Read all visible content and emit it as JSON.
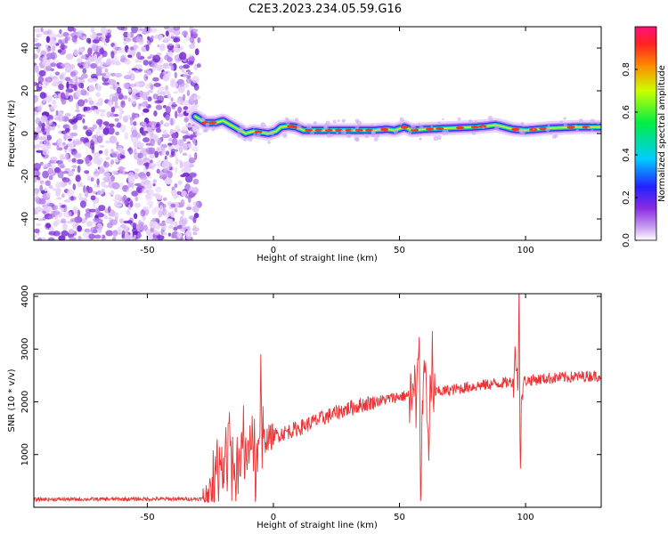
{
  "title": "C2E3.2023.234.05.59.G16",
  "chart_data": [
    {
      "type": "heatmap",
      "xlabel": "Height of straight line (km)",
      "ylabel": "Frequency (Hz)",
      "xlim": [
        -95,
        130
      ],
      "ylim": [
        -50,
        50
      ],
      "xticks": [
        -50,
        0,
        50,
        100
      ],
      "yticks": [
        -40,
        -20,
        0,
        20,
        40
      ],
      "noise_region_x": [
        -95,
        -31
      ],
      "signal_ridge": {
        "x": [
          -31,
          -27,
          -23,
          -20,
          -17,
          -14,
          -11,
          -8,
          -5,
          -2,
          1,
          3,
          6,
          9,
          12,
          20,
          30,
          40,
          45,
          48,
          52,
          55,
          60,
          70,
          80,
          85,
          88,
          90,
          95,
          100,
          110,
          120,
          130
        ],
        "y": [
          8,
          5,
          5,
          6,
          4,
          2,
          0,
          1,
          0.5,
          0,
          1,
          3,
          3.5,
          3,
          1.5,
          1.5,
          1.5,
          1.5,
          2,
          1.5,
          3,
          1.5,
          2,
          2.5,
          3,
          3.5,
          4,
          3.5,
          2,
          1.5,
          2.5,
          3,
          3
        ]
      },
      "colorbar": {
        "label": "Normalized spectral amplitude",
        "range": [
          0,
          1
        ],
        "ticks": [
          "0.0",
          "0.2",
          "0.4",
          "0.6",
          "0.8"
        ]
      }
    },
    {
      "type": "line",
      "xlabel": "Height of straight line (km)",
      "ylabel": "SNR (10 * v/v)",
      "xlim": [
        -95,
        130
      ],
      "ylim": [
        0,
        4050
      ],
      "xticks": [
        -50,
        0,
        50,
        100
      ],
      "yticks": [
        1000,
        2000,
        3000,
        4000
      ],
      "color": "#ee3333",
      "trend": {
        "x": [
          -95,
          -28,
          -25,
          -20,
          -15,
          -10,
          -5,
          0,
          10,
          20,
          30,
          40,
          50,
          60,
          70,
          80,
          95,
          100,
          110,
          130
        ],
        "y": [
          150,
          160,
          300,
          550,
          800,
          1050,
          1250,
          1350,
          1500,
          1700,
          1880,
          2000,
          2100,
          2150,
          2220,
          2300,
          2380,
          2400,
          2450,
          2500
        ]
      },
      "spikes": [
        {
          "x": -22.5,
          "y": 1350
        },
        {
          "x": -21,
          "y": 1000
        },
        {
          "x": -19,
          "y": 1600
        },
        {
          "x": -17.5,
          "y": 1950
        },
        {
          "x": -15,
          "y": 300
        },
        {
          "x": -12,
          "y": 1450
        },
        {
          "x": -9,
          "y": 1100
        },
        {
          "x": -5,
          "y": 2500
        },
        {
          "x": -7,
          "y": 200
        },
        {
          "x": 56,
          "y": 2600
        },
        {
          "x": 57.5,
          "y": 3380
        },
        {
          "x": 58.5,
          "y": 100
        },
        {
          "x": 60,
          "y": 3050
        },
        {
          "x": 61.5,
          "y": 800
        },
        {
          "x": 63,
          "y": 2700
        },
        {
          "x": 96,
          "y": 3000
        },
        {
          "x": 97.5,
          "y": 4050
        },
        {
          "x": 98,
          "y": 650
        }
      ]
    }
  ]
}
